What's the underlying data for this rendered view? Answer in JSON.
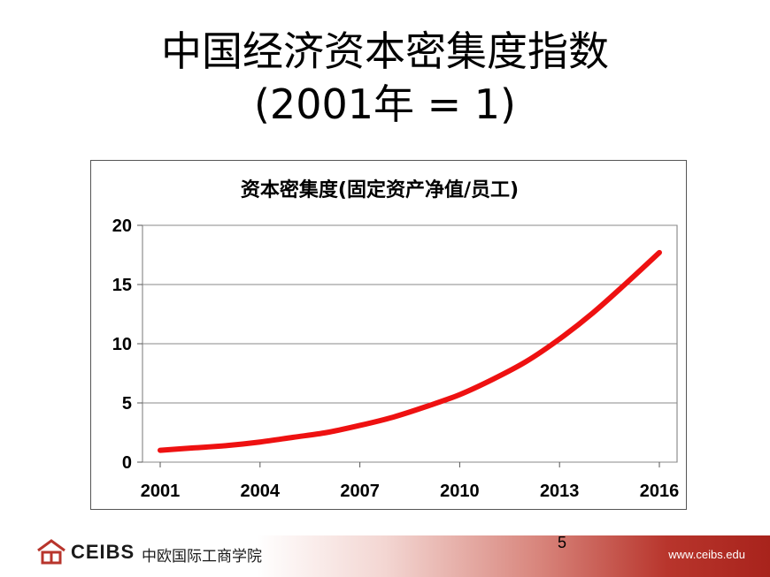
{
  "slide": {
    "title_line1": "中国经济资本密集度指数",
    "title_line2": "(2001年 = 1)",
    "page_number": "5"
  },
  "footer": {
    "brand": "CEIBS",
    "brand_cn": "中欧国际工商学院",
    "website": "www.ceibs.edu",
    "accent_color": "#b8352c"
  },
  "chart_data": {
    "type": "line",
    "title": "资本密集度(固定资产净值/员工)",
    "xlabel": "",
    "ylabel": "",
    "x_ticks": [
      "2001",
      "2004",
      "2007",
      "2010",
      "2013",
      "2016"
    ],
    "y_ticks": [
      "0",
      "5",
      "10",
      "15",
      "20"
    ],
    "xlim": [
      2001,
      2016
    ],
    "ylim": [
      0,
      20
    ],
    "grid": true,
    "line_color": "#ee1111",
    "series": [
      {
        "x": [
          2001,
          2002,
          2003,
          2004,
          2005,
          2006,
          2007,
          2008,
          2009,
          2010,
          2011,
          2012,
          2013,
          2014,
          2015,
          2016
        ],
        "values": [
          1.0,
          1.2,
          1.4,
          1.7,
          2.1,
          2.5,
          3.1,
          3.8,
          4.7,
          5.7,
          7.0,
          8.5,
          10.4,
          12.6,
          15.1,
          17.7
        ]
      }
    ]
  }
}
